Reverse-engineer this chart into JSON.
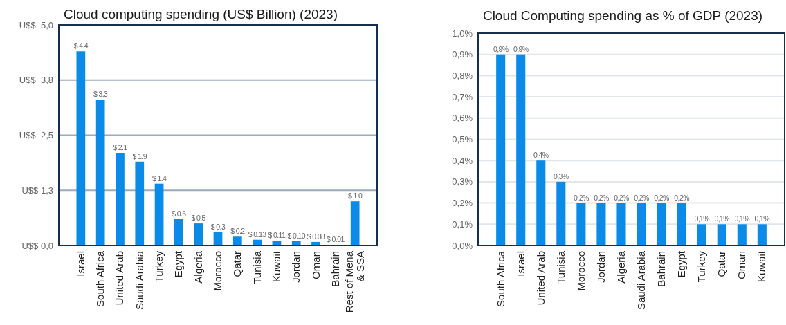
{
  "chart_data": [
    {
      "type": "bar",
      "title": "Cloud computing spending (US$ Billion) (2023)",
      "categories": [
        "Israel",
        "South Africa",
        "United Arab",
        "Saudi Arabia",
        "Turkey",
        "Egypt",
        "Algeria",
        "Morocco",
        "Qatar",
        "Tunisia",
        "Kuwait",
        "Jordan",
        "Oman",
        "Bahrain",
        "Rest of Mena\n& SSA"
      ],
      "values": [
        4.4,
        3.3,
        2.1,
        1.9,
        1.4,
        0.6,
        0.5,
        0.3,
        0.2,
        0.13,
        0.11,
        0.1,
        0.08,
        0.01,
        1.0
      ],
      "value_labels": [
        "$ 4.4",
        "$ 3.3",
        "$ 2.1",
        "$ 1.9",
        "$ 1.4",
        "$ 0.6",
        "$ 0.5",
        "$ 0.3",
        "$ 0.2",
        "$ 0.13",
        "$ 0.11",
        "$ 0.10",
        "$ 0.08",
        "$ 0.01",
        "$ 1.0"
      ],
      "color": "#0a8be8",
      "ylim": [
        0,
        5
      ],
      "yticks": [
        {
          "value": 0,
          "label": "U$$ 0,0"
        },
        {
          "value": 1.25,
          "label": "U$$ 1,3"
        },
        {
          "value": 2.5,
          "label": "U$$  2,5"
        },
        {
          "value": 3.75,
          "label": "U$$  3,8"
        },
        {
          "value": 5,
          "label": "U$$  5,0"
        }
      ],
      "grid": "y"
    },
    {
      "type": "bar",
      "title": "Cloud Computing spending as % of GDP (2023)",
      "categories": [
        "South Africa",
        "Israel",
        "United Arab",
        "Tunisia",
        "Morocco",
        "Jordan",
        "Algeria",
        "Saudi Arabia",
        "Bahrain",
        "Egypt",
        "Turkey",
        "Qatar",
        "Oman",
        "Kuwait"
      ],
      "values": [
        0.9,
        0.9,
        0.4,
        0.3,
        0.2,
        0.2,
        0.2,
        0.2,
        0.2,
        0.2,
        0.1,
        0.1,
        0.1,
        0.1
      ],
      "value_labels": [
        "0,9%",
        "0,9%",
        "0,4%",
        "0,3%",
        "0,2%",
        "0,2%",
        "0,2%",
        "0,2%",
        "0,2%",
        "0,2%",
        "0,1%",
        "0,1%",
        "0,1%",
        "0,1%"
      ],
      "color": "#0a8be8",
      "ylim": [
        0,
        1
      ],
      "yticks": [
        {
          "value": 0,
          "label": "0,0%"
        },
        {
          "value": 0.1,
          "label": "0,1%"
        },
        {
          "value": 0.2,
          "label": "0,2%"
        },
        {
          "value": 0.3,
          "label": "0,3%"
        },
        {
          "value": 0.4,
          "label": "0,4%"
        },
        {
          "value": 0.5,
          "label": "0,5%"
        },
        {
          "value": 0.6,
          "label": "0,6%"
        },
        {
          "value": 0.7,
          "label": "0,7%"
        },
        {
          "value": 0.8,
          "label": "0,8%"
        },
        {
          "value": 0.9,
          "label": "0,9%"
        },
        {
          "value": 1,
          "label": "1,0%"
        }
      ],
      "grid": "y"
    }
  ]
}
